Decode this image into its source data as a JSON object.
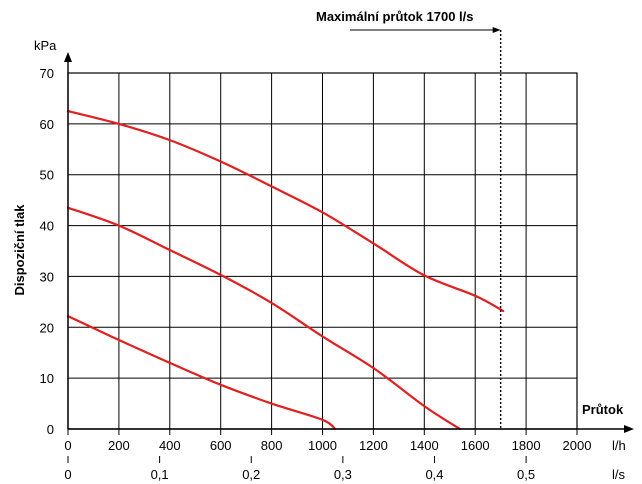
{
  "chart_data": {
    "type": "line",
    "ylabel": "Dispoziční tlak",
    "yunit": "kPa",
    "xlabel": "Průtok",
    "xunit_primary": "l/h",
    "xunit_secondary": "l/s",
    "ylim": [
      0,
      70
    ],
    "xlim": [
      0,
      2000
    ],
    "yticks": [
      "0",
      "10",
      "20",
      "30",
      "40",
      "50",
      "60",
      "70"
    ],
    "xticks_primary": [
      "0",
      "200",
      "400",
      "600",
      "800",
      "1000",
      "1200",
      "1400",
      "1600",
      "1800",
      "2000"
    ],
    "xticks_secondary": [
      {
        "label": "0",
        "value": 0
      },
      {
        "label": "0,1",
        "value": 0.1
      },
      {
        "label": "0,2",
        "value": 0.2
      },
      {
        "label": "0,3",
        "value": 0.3
      },
      {
        "label": "0,4",
        "value": 0.4
      },
      {
        "label": "0,5",
        "value": 0.5
      },
      {
        "label": "l/s",
        "value": null
      }
    ],
    "grid": true,
    "series_color": "#e02020",
    "series": [
      {
        "x": [
          0,
          200,
          400,
          600,
          800,
          1000,
          1200,
          1400,
          1600,
          1710
        ],
        "y": [
          62.5,
          60,
          56.8,
          52.6,
          47.7,
          42.6,
          36.5,
          30.2,
          26.2,
          23.2
        ]
      },
      {
        "x": [
          0,
          200,
          400,
          600,
          800,
          1000,
          1200,
          1400,
          1540
        ],
        "y": [
          43.5,
          40,
          35.2,
          30.3,
          24.8,
          18.2,
          12,
          4.5,
          0
        ]
      },
      {
        "x": [
          0,
          200,
          400,
          600,
          800,
          1000,
          1050
        ],
        "y": [
          22.2,
          17.5,
          13,
          8.7,
          5,
          1.8,
          0
        ]
      }
    ],
    "max_flow": {
      "value": 1700,
      "label": "Maximální průtok 1700 l/s"
    }
  }
}
